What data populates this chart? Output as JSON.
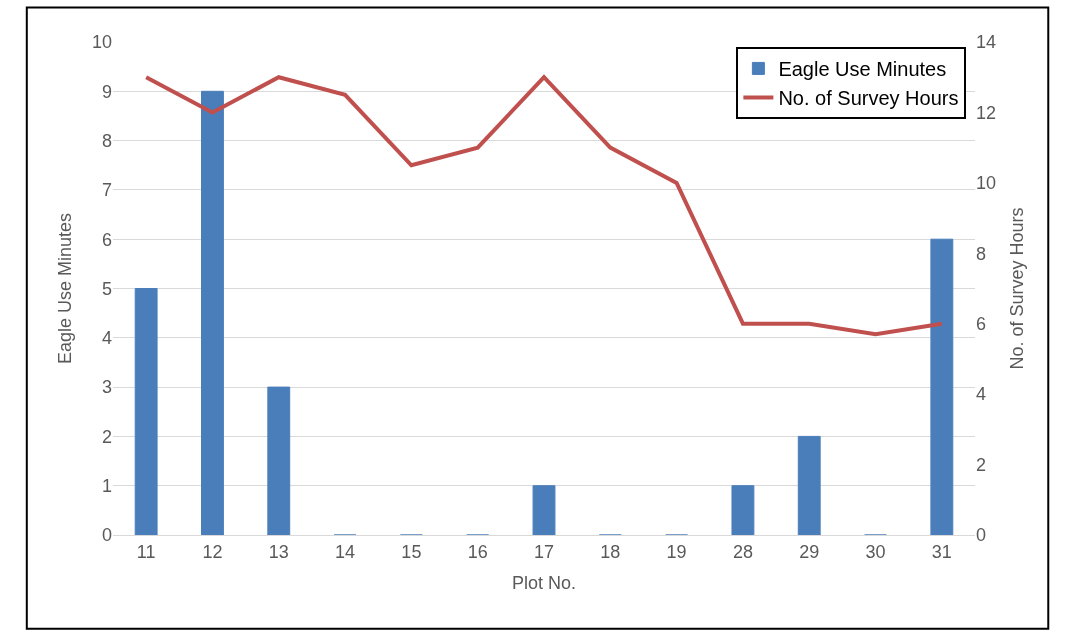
{
  "chart_data": {
    "type": "bar",
    "xlabel": "Plot No.",
    "ylabel": "Eagle Use Minutes",
    "y2label": "No. of Survey Hours",
    "categories": [
      "11",
      "12",
      "13",
      "14",
      "15",
      "16",
      "17",
      "18",
      "19",
      "28",
      "29",
      "30",
      "31"
    ],
    "series": [
      {
        "name": "Eagle Use Minutes",
        "color": "#4a7ebb",
        "values": [
          5,
          9,
          3,
          0,
          0,
          0,
          1,
          0,
          0,
          1,
          2,
          0,
          6
        ]
      },
      {
        "name": "No. of Survey Hours",
        "type": "line",
        "axis": "y2",
        "color": "#c0504d",
        "values": [
          13,
          12,
          13,
          12.5,
          10.5,
          11,
          13,
          11,
          10,
          6,
          6,
          5.7,
          6
        ]
      }
    ],
    "ylim": [
      0,
      10
    ],
    "yticks": [
      0,
      1,
      2,
      3,
      4,
      5,
      6,
      7,
      8,
      9,
      10
    ],
    "y2lim": [
      0,
      14
    ],
    "y2ticks": [
      0,
      2,
      4,
      6,
      8,
      10,
      12,
      14
    ],
    "grid": "y",
    "legend": "top right",
    "marker": "none",
    "line_style": "solid"
  }
}
